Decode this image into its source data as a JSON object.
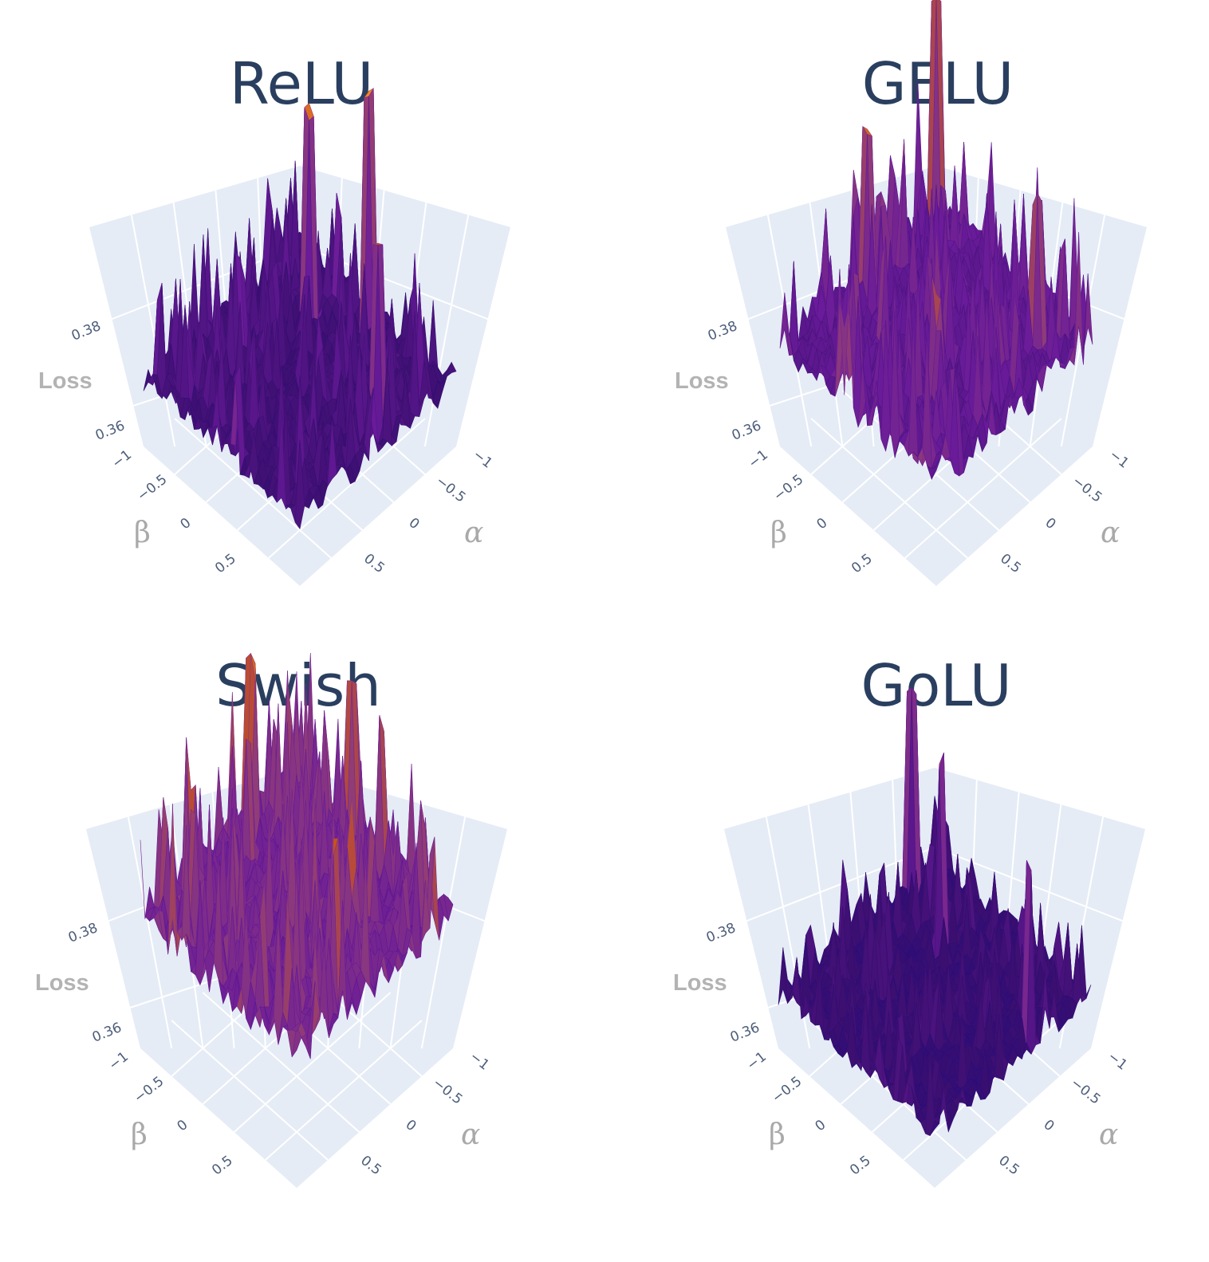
{
  "chart_data": [
    {
      "type": "surface",
      "title": "ReLU",
      "axes": {
        "x": {
          "label": "α",
          "ticks": [
            "−1",
            "−0.5",
            "0",
            "0.5"
          ],
          "range": [
            -1,
            1
          ]
        },
        "y": {
          "label": "β",
          "ticks": [
            "−1",
            "−0.5",
            "0",
            "0.5"
          ],
          "range": [
            -1,
            1
          ]
        },
        "z": {
          "label": "Loss",
          "ticks": [
            "0.36",
            "0.38"
          ],
          "range": [
            0.35,
            0.395
          ]
        }
      },
      "surface": {
        "base": 0.359,
        "roughness": 0.65,
        "spikes": [
          [
            0.1,
            -0.8,
            0.392
          ],
          [
            -0.4,
            -0.5,
            0.388
          ],
          [
            0.8,
            -0.2,
            0.384
          ]
        ]
      },
      "colorscale": [
        "#0d0887",
        "#3b0f70",
        "#6a1b9a",
        "#8e3b7a",
        "#c8511c",
        "#f0892b",
        "#fcce25"
      ]
    },
    {
      "type": "surface",
      "title": "GELU",
      "axes": {
        "x": {
          "label": "α",
          "ticks": [
            "−1",
            "−0.5",
            "0",
            "0.5"
          ],
          "range": [
            -1,
            1
          ]
        },
        "y": {
          "label": "β",
          "ticks": [
            "−1",
            "−0.5",
            "0",
            "0.5"
          ],
          "range": [
            -1,
            1
          ]
        },
        "z": {
          "label": "Loss",
          "ticks": [
            "0.36",
            "0.38"
          ],
          "range": [
            0.35,
            0.395
          ]
        }
      },
      "surface": {
        "base": 0.364,
        "roughness": 0.8,
        "spikes": [
          [
            -0.9,
            -0.9,
            0.394
          ],
          [
            -0.8,
            0.1,
            0.387
          ],
          [
            0.7,
            -0.6,
            0.385
          ]
        ]
      },
      "colorscale": [
        "#0d0887",
        "#3b0f70",
        "#6a1b9a",
        "#8e3b7a",
        "#c8511c",
        "#f0892b",
        "#fcce25"
      ]
    },
    {
      "type": "surface",
      "title": "Swish",
      "axes": {
        "x": {
          "label": "α",
          "ticks": [
            "−1",
            "−0.5",
            "0",
            "0.5"
          ],
          "range": [
            -1,
            1
          ]
        },
        "y": {
          "label": "β",
          "ticks": [
            "−1",
            "−0.5",
            "0",
            "0.5"
          ],
          "range": [
            -1,
            1
          ]
        },
        "z": {
          "label": "Loss",
          "ticks": [
            "0.36",
            "0.38"
          ],
          "range": [
            0.35,
            0.395
          ]
        }
      },
      "surface": {
        "base": 0.368,
        "roughness": 0.9,
        "spikes": [
          [
            -0.9,
            -0.3,
            0.392
          ],
          [
            0.8,
            0.3,
            0.389
          ],
          [
            -0.2,
            -0.9,
            0.39
          ]
        ]
      },
      "colorscale": [
        "#0d0887",
        "#3b0f70",
        "#6a1b9a",
        "#8e3b7a",
        "#c8511c",
        "#f0892b",
        "#fcce25"
      ]
    },
    {
      "type": "surface",
      "title": "GoLU",
      "axes": {
        "x": {
          "label": "α",
          "ticks": [
            "−1",
            "−0.5",
            "0",
            "0.5"
          ],
          "range": [
            -1,
            1
          ]
        },
        "y": {
          "label": "β",
          "ticks": [
            "−1",
            "−0.5",
            "0",
            "0.5"
          ],
          "range": [
            -1,
            1
          ]
        },
        "z": {
          "label": "Loss",
          "ticks": [
            "0.36",
            "0.38"
          ],
          "range": [
            0.35,
            0.395
          ]
        }
      },
      "surface": {
        "base": 0.357,
        "roughness": 0.45,
        "spikes": [
          [
            -0.9,
            -0.6,
            0.385
          ],
          [
            -0.3,
            -0.4,
            0.383
          ],
          [
            0.9,
            -0.3,
            0.381
          ]
        ]
      },
      "colorscale": [
        "#0d0887",
        "#3b0f70",
        "#6a1b9a",
        "#8e3b7a",
        "#c8511c",
        "#f0892b",
        "#fcce25"
      ]
    }
  ]
}
